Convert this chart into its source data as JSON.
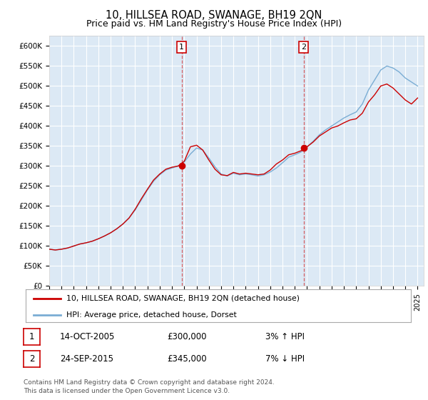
{
  "title": "10, HILLSEA ROAD, SWANAGE, BH19 2QN",
  "subtitle": "Price paid vs. HM Land Registry's House Price Index (HPI)",
  "title_fontsize": 10.5,
  "subtitle_fontsize": 9,
  "ylim": [
    0,
    625000
  ],
  "yticks": [
    0,
    50000,
    100000,
    150000,
    200000,
    250000,
    300000,
    350000,
    400000,
    450000,
    500000,
    550000,
    600000
  ],
  "ytick_labels": [
    "£0",
    "£50K",
    "£100K",
    "£150K",
    "£200K",
    "£250K",
    "£300K",
    "£350K",
    "£400K",
    "£450K",
    "£500K",
    "£550K",
    "£600K"
  ],
  "chart_bg_color": "#dce9f5",
  "figure_bg_color": "#ffffff",
  "grid_color": "#ffffff",
  "red_line_color": "#cc0000",
  "blue_line_color": "#7aadd4",
  "marker1_date": 2005.79,
  "marker1_value": 300000,
  "marker2_date": 2015.73,
  "marker2_value": 345000,
  "legend_line1": "10, HILLSEA ROAD, SWANAGE, BH19 2QN (detached house)",
  "legend_line2": "HPI: Average price, detached house, Dorset",
  "table_row1": [
    "1",
    "14-OCT-2005",
    "£300,000",
    "3% ↑ HPI"
  ],
  "table_row2": [
    "2",
    "24-SEP-2015",
    "£345,000",
    "7% ↓ HPI"
  ],
  "footnote1": "Contains HM Land Registry data © Crown copyright and database right 2024.",
  "footnote2": "This data is licensed under the Open Government Licence v3.0.",
  "xmin": 1995,
  "xmax": 2025.5,
  "years_hpi": [
    1995.0,
    1995.5,
    1996.0,
    1996.5,
    1997.0,
    1997.5,
    1998.0,
    1998.5,
    1999.0,
    1999.5,
    2000.0,
    2000.5,
    2001.0,
    2001.5,
    2002.0,
    2002.5,
    2003.0,
    2003.5,
    2004.0,
    2004.5,
    2005.0,
    2005.5,
    2006.0,
    2006.5,
    2007.0,
    2007.5,
    2008.0,
    2008.5,
    2009.0,
    2009.5,
    2010.0,
    2010.5,
    2011.0,
    2011.5,
    2012.0,
    2012.5,
    2013.0,
    2013.5,
    2014.0,
    2014.5,
    2015.0,
    2015.5,
    2016.0,
    2016.5,
    2017.0,
    2017.5,
    2018.0,
    2018.5,
    2019.0,
    2019.5,
    2020.0,
    2020.5,
    2021.0,
    2021.5,
    2022.0,
    2022.5,
    2023.0,
    2023.5,
    2024.0,
    2024.5,
    2025.0
  ],
  "hpi_values": [
    92000,
    90000,
    92000,
    95000,
    100000,
    105000,
    108000,
    112000,
    118000,
    125000,
    133000,
    143000,
    155000,
    170000,
    190000,
    215000,
    240000,
    262000,
    278000,
    290000,
    295000,
    300000,
    310000,
    330000,
    345000,
    340000,
    320000,
    298000,
    280000,
    275000,
    282000,
    278000,
    280000,
    278000,
    275000,
    278000,
    285000,
    295000,
    308000,
    322000,
    328000,
    335000,
    348000,
    362000,
    378000,
    390000,
    400000,
    410000,
    420000,
    428000,
    435000,
    455000,
    490000,
    515000,
    540000,
    550000,
    545000,
    535000,
    520000,
    510000,
    500000
  ],
  "red_values": [
    92000,
    90000,
    92000,
    95000,
    100000,
    105000,
    108000,
    112000,
    118000,
    125000,
    133000,
    143000,
    155000,
    170000,
    192000,
    218000,
    242000,
    265000,
    280000,
    292000,
    297000,
    300000,
    312000,
    348000,
    352000,
    340000,
    315000,
    292000,
    278000,
    276000,
    284000,
    280000,
    282000,
    280000,
    278000,
    280000,
    290000,
    305000,
    315000,
    328000,
    332000,
    338000,
    348000,
    360000,
    375000,
    385000,
    395000,
    400000,
    408000,
    415000,
    418000,
    432000,
    460000,
    478000,
    500000,
    505000,
    495000,
    480000,
    465000,
    455000,
    470000
  ]
}
